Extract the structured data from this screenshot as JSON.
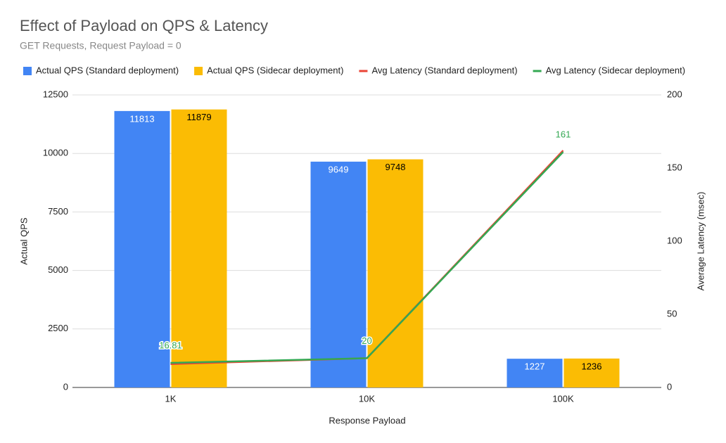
{
  "chart_data": {
    "type": "combo",
    "title": "Effect of Payload on QPS & Latency",
    "subtitle": "GET Requests, Request Payload = 0",
    "x_label": "Response Payload",
    "y_label": "Actual QPS",
    "y2_label": "Average Latency (msec)",
    "categories": [
      "1K",
      "10K",
      "100K"
    ],
    "series": [
      {
        "name": "Actual QPS (Standard deployment)",
        "type": "bar",
        "color": "#4285f4",
        "label_color": "#ffffff",
        "show_labels": true,
        "values": [
          11813,
          9649,
          1227
        ]
      },
      {
        "name": "Actual QPS (Sidecar deployment)",
        "type": "bar",
        "color": "#fbbc04",
        "label_color": "#000000",
        "show_labels": true,
        "values": [
          11879,
          9748,
          1236
        ]
      },
      {
        "name": "Avg Latency (Standard deployment)",
        "type": "line",
        "axis": "y2",
        "color": "#ea4335",
        "show_labels": false,
        "values": [
          16,
          20,
          162
        ]
      },
      {
        "name": "Avg Latency (Sidecar deployment)",
        "type": "line",
        "axis": "y2",
        "color": "#34a853",
        "label_color": "#34a853",
        "show_labels": true,
        "values": [
          16.81,
          20,
          161
        ]
      }
    ],
    "ylim": [
      0,
      12500
    ],
    "yticks": [
      0,
      2500,
      5000,
      7500,
      10000,
      12500
    ],
    "y2lim": [
      0,
      200
    ],
    "y2ticks": [
      0,
      50,
      100,
      150,
      200
    ],
    "grid": true,
    "legend": "top"
  }
}
